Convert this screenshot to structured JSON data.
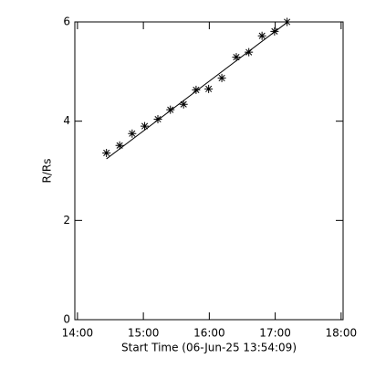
{
  "chart_data": {
    "type": "scatter",
    "x_label": "Start Time (06-Jun-25 13:54:09)",
    "y_label": "R/Rs",
    "x": [
      14.44,
      14.64,
      14.83,
      15.02,
      15.22,
      15.41,
      15.61,
      15.8,
      15.99,
      16.19,
      16.41,
      16.6,
      16.8,
      16.99,
      17.18
    ],
    "values": [
      3.36,
      3.51,
      3.75,
      3.9,
      4.04,
      4.23,
      4.34,
      4.63,
      4.65,
      4.87,
      5.29,
      5.39,
      5.72,
      5.81,
      6.0
    ],
    "fit": {
      "x": [
        14.44,
        17.18
      ],
      "values": [
        3.24,
        5.99
      ]
    },
    "color": "#000000",
    "xlim": [
      13.96,
      18.03
    ],
    "ylim": [
      0,
      6
    ],
    "xticks": [
      {
        "value": 14,
        "label": "14:00"
      },
      {
        "value": 15,
        "label": "15:00"
      },
      {
        "value": 16,
        "label": "16:00"
      },
      {
        "value": 17,
        "label": "17:00"
      },
      {
        "value": 18,
        "label": "18:00"
      }
    ],
    "yticks": [
      0,
      2,
      4,
      6
    ]
  }
}
